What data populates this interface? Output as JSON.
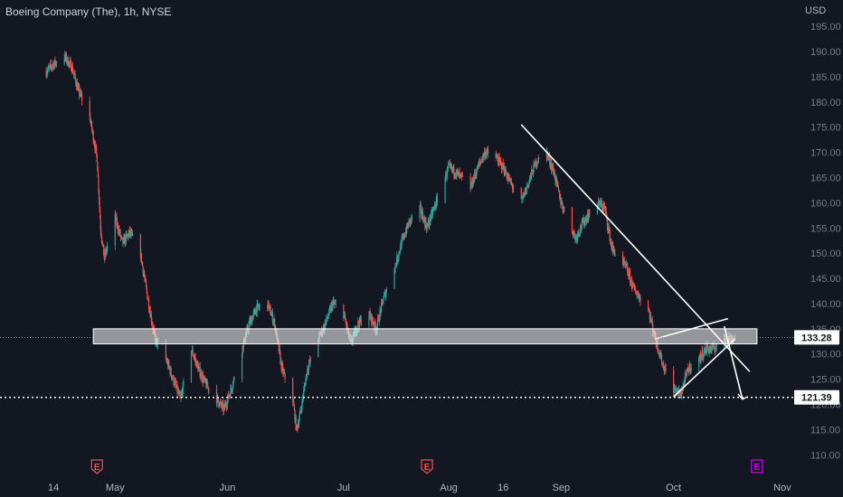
{
  "header": {
    "title": "Boeing Company (The), 1h, NYSE",
    "currency": "USD"
  },
  "colors": {
    "background": "#131722",
    "up": "#26a69a",
    "down": "#ef5350",
    "drawing": "#ffffff",
    "earnings_past": "#ef5350",
    "earnings_future": "#d500f9"
  },
  "chart_data": {
    "type": "candlestick",
    "ylim": [
      107,
      197
    ],
    "y_ticks": [
      195,
      190,
      185,
      180,
      175,
      170,
      165,
      160,
      155,
      150,
      145,
      140,
      135,
      130,
      125,
      120,
      115,
      110
    ],
    "x_ticks": [
      {
        "label": "14",
        "x": "2023-04-14"
      },
      {
        "label": "May",
        "x": "2023-05-01"
      },
      {
        "label": "Jun",
        "x": "2023-06-01"
      },
      {
        "label": "Jul",
        "x": "2023-07-03"
      },
      {
        "label": "Aug",
        "x": "2023-08-01"
      },
      {
        "label": "16",
        "x": "2023-08-16"
      },
      {
        "label": "Sep",
        "x": "2023-09-01"
      },
      {
        "label": "Oct",
        "x": "2023-10-02"
      },
      {
        "label": "Nov",
        "x": "2023-11-01"
      }
    ],
    "price_path": [
      [
        "2023-04-12",
        186
      ],
      [
        "2023-04-14",
        187.5
      ],
      [
        "2023-04-17",
        189
      ],
      [
        "2023-04-19",
        187
      ],
      [
        "2023-04-21",
        182
      ],
      [
        "2023-04-24",
        177
      ],
      [
        "2023-04-26",
        169
      ],
      [
        "2023-04-27",
        155
      ],
      [
        "2023-04-28",
        149
      ],
      [
        "2023-05-01",
        157
      ],
      [
        "2023-05-03",
        152
      ],
      [
        "2023-05-05",
        154
      ],
      [
        "2023-05-08",
        150
      ],
      [
        "2023-05-10",
        141
      ],
      [
        "2023-05-12",
        133
      ],
      [
        "2023-05-15",
        129
      ],
      [
        "2023-05-17",
        125
      ],
      [
        "2023-05-19",
        121
      ],
      [
        "2023-05-22",
        131
      ],
      [
        "2023-05-24",
        127
      ],
      [
        "2023-05-26",
        124
      ],
      [
        "2023-05-29",
        121
      ],
      [
        "2023-05-31",
        119
      ],
      [
        "2023-06-02",
        123
      ],
      [
        "2023-06-05",
        131
      ],
      [
        "2023-06-07",
        136
      ],
      [
        "2023-06-09",
        139
      ],
      [
        "2023-06-12",
        140
      ],
      [
        "2023-06-14",
        136
      ],
      [
        "2023-06-16",
        127
      ],
      [
        "2023-06-19",
        121
      ],
      [
        "2023-06-20",
        115
      ],
      [
        "2023-06-21",
        118
      ],
      [
        "2023-06-23",
        127
      ],
      [
        "2023-06-26",
        133
      ],
      [
        "2023-06-28",
        136
      ],
      [
        "2023-06-30",
        140
      ],
      [
        "2023-07-03",
        138
      ],
      [
        "2023-07-05",
        132
      ],
      [
        "2023-07-07",
        136
      ],
      [
        "2023-07-10",
        138
      ],
      [
        "2023-07-12",
        135
      ],
      [
        "2023-07-14",
        141
      ],
      [
        "2023-07-17",
        147
      ],
      [
        "2023-07-19",
        152
      ],
      [
        "2023-07-21",
        156
      ],
      [
        "2023-07-24",
        159
      ],
      [
        "2023-07-26",
        155
      ],
      [
        "2023-07-28",
        159
      ],
      [
        "2023-08-01",
        167
      ],
      [
        "2023-08-03",
        166
      ],
      [
        "2023-08-07",
        163
      ],
      [
        "2023-08-09",
        167
      ],
      [
        "2023-08-11",
        170
      ],
      [
        "2023-08-14",
        169
      ],
      [
        "2023-08-16",
        167
      ],
      [
        "2023-08-18",
        164
      ],
      [
        "2023-08-21",
        160
      ],
      [
        "2023-08-23",
        164
      ],
      [
        "2023-08-25",
        168
      ],
      [
        "2023-08-28",
        170
      ],
      [
        "2023-08-30",
        166
      ],
      [
        "2023-09-01",
        160
      ],
      [
        "2023-09-05",
        153
      ],
      [
        "2023-09-07",
        156
      ],
      [
        "2023-09-11",
        160
      ],
      [
        "2023-09-13",
        159
      ],
      [
        "2023-09-15",
        151
      ],
      [
        "2023-09-19",
        147
      ],
      [
        "2023-09-21",
        143
      ],
      [
        "2023-09-25",
        139
      ],
      [
        "2023-09-27",
        133
      ],
      [
        "2023-09-29",
        128
      ],
      [
        "2023-10-02",
        123
      ],
      [
        "2023-10-04",
        122
      ],
      [
        "2023-10-06",
        127
      ],
      [
        "2023-10-09",
        129
      ],
      [
        "2023-10-11",
        131
      ],
      [
        "2023-10-13",
        131
      ],
      [
        "2023-10-16",
        133
      ],
      [
        "2023-10-18",
        133
      ]
    ],
    "drawings": {
      "zone": {
        "from": "2023-04-25",
        "to": "2023-10-25",
        "top": 135,
        "bottom": 132
      },
      "lines": [
        {
          "from": [
            "2023-08-21",
            175.5
          ],
          "to": [
            "2023-10-23",
            126.5
          ]
        },
        {
          "from": [
            "2023-09-27",
            133
          ],
          "to": [
            "2023-10-17",
            137
          ]
        },
        {
          "from": [
            "2023-10-02",
            121.5
          ],
          "to": [
            "2023-10-19",
            133
          ]
        },
        {
          "from": [
            "2023-10-16",
            135.5
          ],
          "to": [
            "2023-10-21",
            121
          ]
        }
      ],
      "dotted_level": 121.39
    },
    "last_price": 133.28,
    "level_label": 121.39,
    "earnings": [
      {
        "x": "2023-04-26",
        "label": "E",
        "state": "past"
      },
      {
        "x": "2023-07-26",
        "label": "E",
        "state": "past"
      },
      {
        "x": "2023-10-25",
        "label": "E",
        "state": "future"
      }
    ]
  }
}
